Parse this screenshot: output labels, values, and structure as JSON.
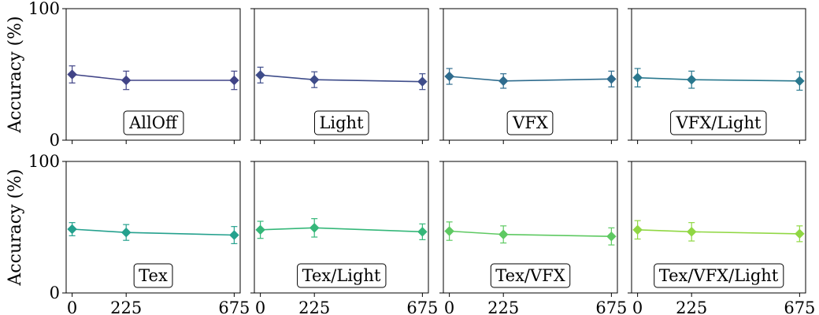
{
  "chart_data": {
    "type": "line",
    "layout": "2x4 small multiples, shared axes",
    "ylabel": "Accuracy (%)",
    "ylim": [
      0,
      100
    ],
    "yticks": [
      0,
      100
    ],
    "xticks": [
      0,
      225,
      675
    ],
    "x": [
      0,
      225,
      675
    ],
    "error_bars": true,
    "grid": false,
    "panels": [
      {
        "label": "AllOff",
        "color": "#414487",
        "values": [
          50,
          45.5,
          45.5
        ],
        "errors": [
          6.5,
          7,
          7
        ]
      },
      {
        "label": "Light",
        "color": "#3e4c8a",
        "values": [
          49.5,
          46,
          44.5
        ],
        "errors": [
          6,
          6,
          6
        ]
      },
      {
        "label": "VFX",
        "color": "#2f6c8e",
        "values": [
          48.5,
          45,
          46.5
        ],
        "errors": [
          6,
          5.5,
          6
        ]
      },
      {
        "label": "VFX/Light",
        "color": "#29788e",
        "values": [
          47.5,
          46,
          45
        ],
        "errors": [
          7,
          6.5,
          7
        ]
      },
      {
        "label": "Tex",
        "color": "#25a18e",
        "values": [
          48.5,
          46,
          44
        ],
        "errors": [
          5,
          6,
          6.5
        ]
      },
      {
        "label": "Tex/Light",
        "color": "#35b779",
        "values": [
          48,
          49.5,
          46.5
        ],
        "errors": [
          6.5,
          7,
          6
        ]
      },
      {
        "label": "Tex/VFX",
        "color": "#5ec962",
        "values": [
          47,
          44.5,
          43
        ],
        "errors": [
          7,
          6.5,
          6.5
        ]
      },
      {
        "label": "Tex/VFX/Light",
        "color": "#90d743",
        "values": [
          48,
          46.5,
          45
        ],
        "errors": [
          7,
          7,
          6
        ]
      }
    ]
  }
}
